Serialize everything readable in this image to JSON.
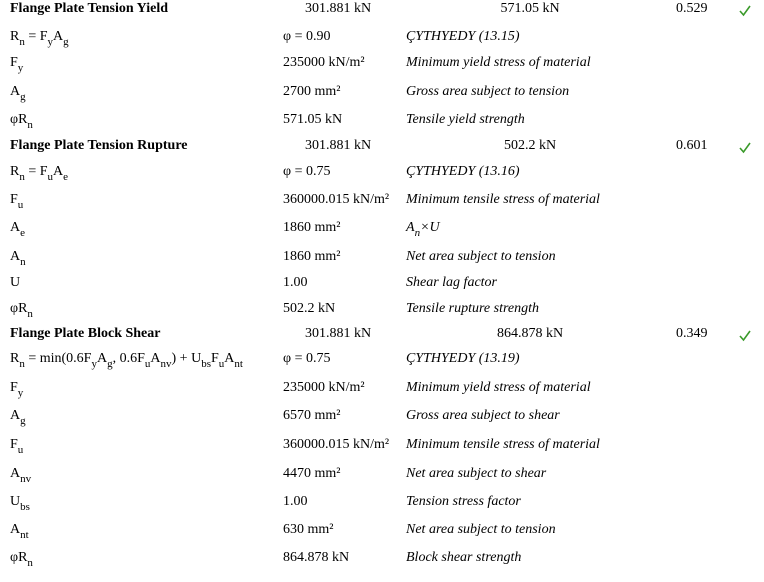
{
  "sections": [
    {
      "title": "Flange Plate Tension Yield",
      "demand": "301.881 kN",
      "capacity": "571.05 kN",
      "ratio": "0.529",
      "rows": [
        {
          "symbol": [
            {
              "text": "R",
              "sub": "n"
            },
            {
              "text": " = F",
              "sub": "y"
            },
            {
              "text": "A",
              "sub": "g"
            }
          ],
          "value": "φ = 0.90",
          "note": "ÇYTHYEDY (13.15)"
        },
        {
          "symbol": [
            {
              "text": "F",
              "sub": "y"
            }
          ],
          "value": "235000 kN/m²",
          "note": "Minimum yield stress of material"
        },
        {
          "symbol": [
            {
              "text": "A",
              "sub": "g"
            }
          ],
          "value": "2700 mm²",
          "note": "Gross area subject to tension"
        },
        {
          "symbol": [
            {
              "text": "φR",
              "sub": "n"
            }
          ],
          "value": "571.05 kN",
          "note": "Tensile yield strength"
        }
      ]
    },
    {
      "title": "Flange Plate Tension Rupture",
      "demand": "301.881 kN",
      "capacity": "502.2 kN",
      "ratio": "0.601",
      "rows": [
        {
          "symbol": [
            {
              "text": "R",
              "sub": "n"
            },
            {
              "text": " = F",
              "sub": "u"
            },
            {
              "text": "A",
              "sub": "e"
            }
          ],
          "value": "φ = 0.75",
          "note": "ÇYTHYEDY (13.16)"
        },
        {
          "symbol": [
            {
              "text": "F",
              "sub": "u"
            }
          ],
          "value": "360000.015 kN/m²",
          "note": "Minimum tensile stress of material"
        },
        {
          "symbol": [
            {
              "text": "A",
              "sub": "e"
            }
          ],
          "value": "1860 mm²",
          "note": [
            {
              "text": "A",
              "sub": "n"
            },
            {
              "text": "×U"
            }
          ]
        },
        {
          "symbol": [
            {
              "text": "A",
              "sub": "n"
            }
          ],
          "value": "1860 mm²",
          "note": "Net area subject to tension"
        },
        {
          "symbol": [
            {
              "text": "U"
            }
          ],
          "value": "1.00",
          "note": "Shear lag factor"
        },
        {
          "symbol": [
            {
              "text": "φR",
              "sub": "n"
            }
          ],
          "value": "502.2 kN",
          "note": "Tensile rupture strength"
        }
      ]
    },
    {
      "title": "Flange Plate Block Shear",
      "demand": "301.881 kN",
      "capacity": "864.878 kN",
      "ratio": "0.349",
      "rows": [
        {
          "symbol": [
            {
              "text": "R",
              "sub": "n"
            },
            {
              "text": " = min(0.6F",
              "sub": "y"
            },
            {
              "text": "A",
              "sub": "g"
            },
            {
              "text": ", 0.6F",
              "sub": "u"
            },
            {
              "text": "A",
              "sub": "nv"
            },
            {
              "text": ") + U",
              "sub": "bs"
            },
            {
              "text": "F",
              "sub": "u"
            },
            {
              "text": "A",
              "sub": "nt"
            }
          ],
          "value": "φ = 0.75",
          "note": "ÇYTHYEDY (13.19)"
        },
        {
          "symbol": [
            {
              "text": "F",
              "sub": "y"
            }
          ],
          "value": "235000 kN/m²",
          "note": "Minimum yield stress of material"
        },
        {
          "symbol": [
            {
              "text": "A",
              "sub": "g"
            }
          ],
          "value": "6570 mm²",
          "note": "Gross area subject to shear"
        },
        {
          "symbol": [
            {
              "text": "F",
              "sub": "u"
            }
          ],
          "value": "360000.015 kN/m²",
          "note": "Minimum tensile stress of material"
        },
        {
          "symbol": [
            {
              "text": "A",
              "sub": "nv"
            }
          ],
          "value": "4470 mm²",
          "note": "Net area subject to shear"
        },
        {
          "symbol": [
            {
              "text": "U",
              "sub": "bs"
            }
          ],
          "value": "1.00",
          "note": "Tension stress factor"
        },
        {
          "symbol": [
            {
              "text": "A",
              "sub": "nt"
            }
          ],
          "value": "630 mm²",
          "note": "Net area subject to tension"
        },
        {
          "symbol": [
            {
              "text": "φR",
              "sub": "n"
            }
          ],
          "value": "864.878 kN",
          "note": "Block shear strength"
        }
      ]
    }
  ]
}
